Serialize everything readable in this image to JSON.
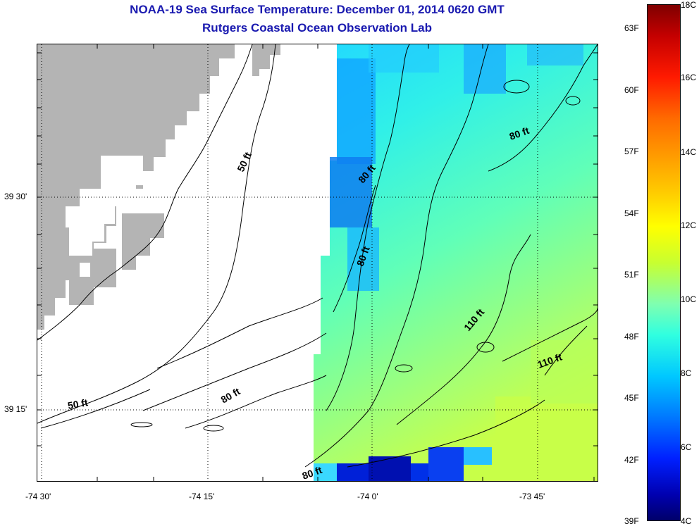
{
  "title": "NOAA-19 Sea Surface Temperature:  December 01, 2014 0620 GMT",
  "subtitle": "Rutgers Coastal Ocean Observation Lab",
  "x_ticks": [
    "-74 30'",
    "-74 15'",
    "-74 0'",
    "-73 45'"
  ],
  "y_ticks": [
    "39 30'",
    "39 15'"
  ],
  "contour_labels": [
    "50 ft",
    "50 ft",
    "80 ft",
    "80 ft",
    "80 ft",
    "80 ft",
    "80 ft",
    "110 ft",
    "110 ft"
  ],
  "colorbar": {
    "fahrenheit": [
      "63F",
      "60F",
      "57F",
      "54F",
      "51F",
      "48F",
      "45F",
      "42F",
      "39F"
    ],
    "celsius": [
      "18C",
      "16C",
      "14C",
      "12C",
      "10C",
      "8C",
      "6C",
      "4C"
    ]
  },
  "colors": {
    "land": "#b4b4b4",
    "title": "#1a1ab0",
    "contour": "#000000"
  }
}
